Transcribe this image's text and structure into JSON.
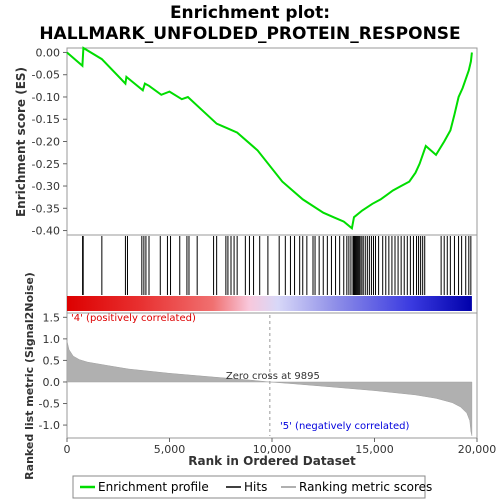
{
  "chart_data": [
    {
      "type": "line",
      "panel": "enrichment-profile",
      "title_line1": "Enrichment plot:",
      "title_line2": "HALLMARK_UNFOLDED_PROTEIN_RESPONSE",
      "ylabel": "Enrichment score (ES)",
      "ylim": [
        -0.41,
        0.01
      ],
      "yticks": [
        "0.00",
        "-0.05",
        "-0.10",
        "-0.15",
        "-0.20",
        "-0.25",
        "-0.30",
        "-0.35",
        "-0.40"
      ],
      "ytick_values": [
        0.0,
        -0.05,
        -0.1,
        -0.15,
        -0.2,
        -0.25,
        -0.3,
        -0.35,
        -0.4
      ],
      "xlim": [
        0,
        20000
      ],
      "grid": false,
      "color": "#00dd00",
      "series": [
        {
          "name": "Enrichment profile",
          "x": [
            0,
            750,
            800,
            1700,
            2850,
            2900,
            3700,
            3800,
            4000,
            4600,
            5000,
            5600,
            5900,
            7300,
            7800,
            8300,
            9300,
            10500,
            11500,
            12500,
            13000,
            13500,
            13900,
            14000,
            14400,
            14900,
            15300,
            15600,
            15900,
            16300,
            16700,
            17000,
            17200,
            17500,
            18000,
            18400,
            18700,
            18900,
            19100,
            19300,
            19600,
            19700,
            19750
          ],
          "y": [
            0.0,
            -0.03,
            0.01,
            -0.015,
            -0.07,
            -0.055,
            -0.085,
            -0.07,
            -0.075,
            -0.095,
            -0.088,
            -0.105,
            -0.1,
            -0.16,
            -0.17,
            -0.18,
            -0.22,
            -0.29,
            -0.33,
            -0.36,
            -0.37,
            -0.38,
            -0.395,
            -0.37,
            -0.355,
            -0.34,
            -0.33,
            -0.32,
            -0.31,
            -0.3,
            -0.29,
            -0.27,
            -0.25,
            -0.21,
            -0.23,
            -0.2,
            -0.175,
            -0.14,
            -0.1,
            -0.08,
            -0.04,
            -0.02,
            0.0
          ]
        }
      ]
    },
    {
      "type": "scatter",
      "panel": "hits",
      "series": [
        {
          "name": "Hits",
          "x": [
            760,
            790,
            1700,
            2850,
            2950,
            3650,
            3750,
            3850,
            4000,
            4550,
            4900,
            5050,
            5500,
            5850,
            5950,
            6350,
            7150,
            7300,
            7750,
            7850,
            8000,
            8150,
            8300,
            8700,
            8900,
            9100,
            9400,
            9800,
            10350,
            10650,
            10900,
            11100,
            11350,
            11500,
            11700,
            12000,
            12100,
            12300,
            12500,
            12700,
            12900,
            13100,
            13300,
            13500,
            13650,
            13750,
            13850,
            13950,
            14000,
            14050,
            14100,
            14150,
            14200,
            14250,
            14300,
            14380,
            14450,
            14550,
            14650,
            14750,
            14850,
            14950,
            15050,
            15200,
            15400,
            15550,
            15700,
            15850,
            16000,
            16150,
            16300,
            16450,
            16600,
            16750,
            16900,
            17050,
            17150,
            17250,
            17350,
            17450,
            18250,
            18400,
            18550,
            18700,
            18900,
            19100,
            19250,
            19450,
            19600,
            19700
          ]
        }
      ]
    },
    {
      "type": "area",
      "panel": "ranked-list-metric",
      "xlabel": "Rank in Ordered Dataset",
      "ylabel": "Ranked list metric (Signal2Noise)",
      "ylim": [
        -1.3,
        1.6
      ],
      "yticks": [
        "1.5",
        "1.0",
        "0.5",
        "0.0",
        "-0.5",
        "-1.0"
      ],
      "ytick_values": [
        1.5,
        1.0,
        0.5,
        0.0,
        -0.5,
        -1.0
      ],
      "xticks": [
        "0",
        "5,000",
        "10,000",
        "15,000",
        "20,000"
      ],
      "xtick_values": [
        0,
        5000,
        10000,
        15000,
        20000
      ],
      "xlim": [
        0,
        20000
      ],
      "color": "#b0b0b0",
      "x": [
        0,
        100,
        300,
        600,
        1000,
        2000,
        3000,
        5000,
        7000,
        9000,
        9895,
        11000,
        13000,
        15000,
        17000,
        18000,
        18800,
        19200,
        19500,
        19650,
        19700,
        19750
      ],
      "y": [
        0.95,
        0.75,
        0.6,
        0.52,
        0.46,
        0.38,
        0.3,
        0.2,
        0.12,
        0.04,
        0.0,
        -0.04,
        -0.12,
        -0.2,
        -0.3,
        -0.38,
        -0.48,
        -0.58,
        -0.72,
        -0.9,
        -1.15,
        -1.25
      ],
      "annotations": {
        "positive": "'4' (positively correlated)",
        "negative": "'5' (negatively correlated)",
        "zero_cross": "Zero cross at 9895"
      },
      "zero_cross_rank": 9895
    }
  ],
  "legend": {
    "items": [
      {
        "label": "Enrichment profile",
        "color": "#00dd00"
      },
      {
        "label": "Hits",
        "color": "#000000"
      },
      {
        "label": "Ranking metric scores",
        "color": "#b0b0b0"
      }
    ]
  },
  "colors": {
    "profile": "#00dd00",
    "positive_label": "#dd0000",
    "negative_label": "#0000dd",
    "frame": "#999999",
    "metric_fill": "#b0b0b0"
  }
}
